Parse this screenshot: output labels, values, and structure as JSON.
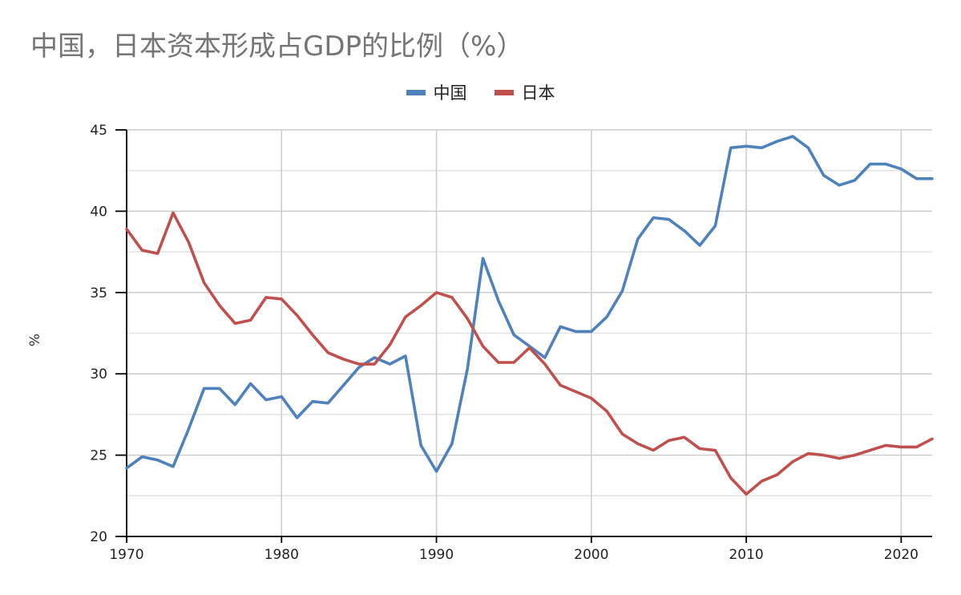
{
  "chart_data": {
    "type": "line",
    "title": "中国，日本资本形成占GDP的比例（%）",
    "ylabel": "%",
    "xlabel": "",
    "xlim": [
      1970,
      2022
    ],
    "ylim": [
      20,
      45
    ],
    "grid": true,
    "legend_position": "top-center",
    "x_ticks": [
      "1970",
      "1980",
      "1990",
      "2000",
      "2010",
      "2020"
    ],
    "y_ticks": [
      "20",
      "25",
      "30",
      "35",
      "40",
      "45"
    ],
    "x": [
      1970,
      1971,
      1972,
      1973,
      1974,
      1975,
      1976,
      1977,
      1978,
      1979,
      1980,
      1981,
      1982,
      1983,
      1984,
      1985,
      1986,
      1987,
      1988,
      1989,
      1990,
      1991,
      1992,
      1993,
      1994,
      1995,
      1996,
      1997,
      1998,
      1999,
      2000,
      2001,
      2002,
      2003,
      2004,
      2005,
      2006,
      2007,
      2008,
      2009,
      2010,
      2011,
      2012,
      2013,
      2014,
      2015,
      2016,
      2017,
      2018,
      2019,
      2020,
      2021,
      2022
    ],
    "series": [
      {
        "name": "中国",
        "color": "#4f81bd",
        "values": [
          24.2,
          24.9,
          24.7,
          24.3,
          26.6,
          29.1,
          29.1,
          28.1,
          29.4,
          28.4,
          28.6,
          27.3,
          28.3,
          28.2,
          29.3,
          30.4,
          31.0,
          30.6,
          31.1,
          25.6,
          24.0,
          25.7,
          30.3,
          37.1,
          34.5,
          32.4,
          31.7,
          31.0,
          32.9,
          32.6,
          32.6,
          33.5,
          35.1,
          38.3,
          39.6,
          39.5,
          38.8,
          37.9,
          39.1,
          43.9,
          44.0,
          43.9,
          44.3,
          44.6,
          43.9,
          42.2,
          41.6,
          41.9,
          42.9,
          42.9,
          42.6,
          42.0,
          42.0
        ]
      },
      {
        "name": "日本",
        "color": "#c0504d",
        "values": [
          38.9,
          37.6,
          37.4,
          39.9,
          38.1,
          35.6,
          34.2,
          33.1,
          33.3,
          34.7,
          34.6,
          33.6,
          32.4,
          31.3,
          30.9,
          30.6,
          30.6,
          31.8,
          33.5,
          34.2,
          35.0,
          34.7,
          33.4,
          31.7,
          30.7,
          30.7,
          31.6,
          30.6,
          29.3,
          28.9,
          28.5,
          27.7,
          26.3,
          25.7,
          25.3,
          25.9,
          26.1,
          25.4,
          25.3,
          23.6,
          22.6,
          23.4,
          23.8,
          24.6,
          25.1,
          25.0,
          24.8,
          25.0,
          25.3,
          25.6,
          25.5,
          25.5,
          26.0
        ]
      }
    ]
  }
}
